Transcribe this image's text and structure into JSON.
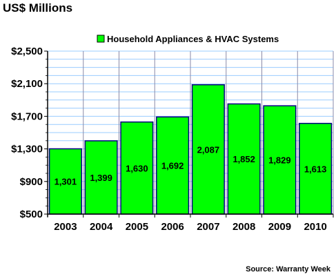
{
  "title": "US$ Millions",
  "source": "Source: Warranty Week",
  "chart_data": {
    "type": "bar",
    "categories": [
      "2003",
      "2004",
      "2005",
      "2006",
      "2007",
      "2008",
      "2009",
      "2010"
    ],
    "series": [
      {
        "name": "Household Appliances & HVAC Systems",
        "values": [
          1301,
          1399,
          1630,
          1692,
          2087,
          1852,
          1829,
          1613
        ],
        "data_labels": [
          "1,301",
          "1,399",
          "1,630",
          "1,692",
          "2,087",
          "1,852",
          "1,829",
          "1,613"
        ]
      }
    ],
    "ylim": [
      500,
      2500
    ],
    "yticks": [
      500,
      900,
      1300,
      1700,
      2100,
      2500
    ],
    "ytick_labels": [
      "$500",
      "$900",
      "$1,300",
      "$1,700",
      "$2,100",
      "$2,500"
    ],
    "minor_grid_step": 100,
    "grid": true,
    "legend_position": "top",
    "colors": {
      "bar": "#00ff00",
      "bar_edge": "#000080",
      "grid": "#99ccff",
      "plot_bg": "#ffffff"
    }
  }
}
